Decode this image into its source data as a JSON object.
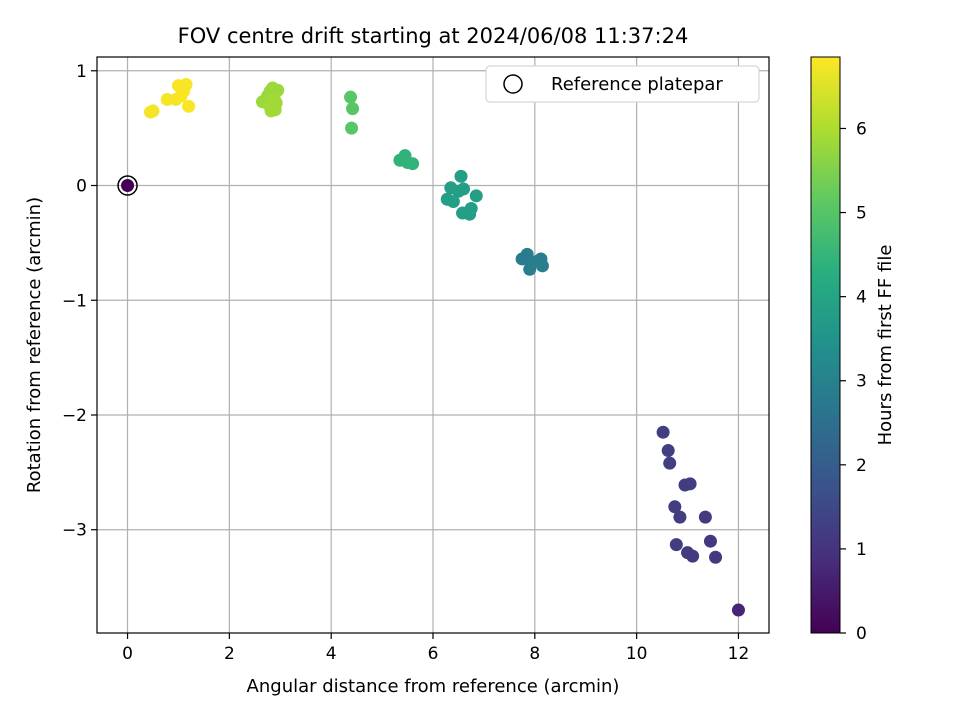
{
  "chart_data": {
    "type": "scatter",
    "title": "FOV centre drift starting at 2024/06/08 11:37:24",
    "xlabel": "Angular distance from reference (arcmin)",
    "ylabel": "Rotation from reference (arcmin)",
    "xlim": [
      -0.6,
      12.6
    ],
    "ylim": [
      -3.9,
      1.12
    ],
    "xticks": [
      0,
      2,
      4,
      6,
      8,
      10,
      12
    ],
    "xtick_labels": [
      "0",
      "2",
      "4",
      "6",
      "8",
      "10",
      "12"
    ],
    "yticks": [
      1,
      0,
      -1,
      -2,
      -3
    ],
    "ytick_labels": [
      "1",
      "0",
      "−1",
      "−2",
      "−3"
    ],
    "grid": true,
    "legend": {
      "position": "top-right",
      "entries": [
        "Reference platepar"
      ]
    },
    "colorbar": {
      "label": "Hours from first FF file",
      "colormap": "viridis",
      "range": [
        0,
        6.85
      ],
      "ticks": [
        0,
        1,
        2,
        3,
        4,
        5,
        6
      ],
      "tick_labels": [
        "0",
        "1",
        "2",
        "3",
        "4",
        "5",
        "6"
      ]
    },
    "reference_point": {
      "x": 0,
      "y": 0
    },
    "points": [
      {
        "x": 0.0,
        "y": 0.0,
        "hours": 0.0
      },
      {
        "x": 12.0,
        "y": -3.7,
        "hours": 0.7
      },
      {
        "x": 11.55,
        "y": -3.24,
        "hours": 1.1
      },
      {
        "x": 11.45,
        "y": -3.1,
        "hours": 1.1
      },
      {
        "x": 11.35,
        "y": -2.89,
        "hours": 1.15
      },
      {
        "x": 11.1,
        "y": -3.23,
        "hours": 1.15
      },
      {
        "x": 11.0,
        "y": -3.2,
        "hours": 1.15
      },
      {
        "x": 10.78,
        "y": -3.13,
        "hours": 1.2
      },
      {
        "x": 10.85,
        "y": -2.89,
        "hours": 1.2
      },
      {
        "x": 10.75,
        "y": -2.8,
        "hours": 1.2
      },
      {
        "x": 11.05,
        "y": -2.6,
        "hours": 1.2
      },
      {
        "x": 10.95,
        "y": -2.61,
        "hours": 1.2
      },
      {
        "x": 10.65,
        "y": -2.42,
        "hours": 1.25
      },
      {
        "x": 10.62,
        "y": -2.31,
        "hours": 1.25
      },
      {
        "x": 10.52,
        "y": -2.15,
        "hours": 1.25
      },
      {
        "x": 7.75,
        "y": -0.64,
        "hours": 2.85
      },
      {
        "x": 7.85,
        "y": -0.6,
        "hours": 2.85
      },
      {
        "x": 7.92,
        "y": -0.67,
        "hours": 2.85
      },
      {
        "x": 7.9,
        "y": -0.73,
        "hours": 2.9
      },
      {
        "x": 8.05,
        "y": -0.66,
        "hours": 2.9
      },
      {
        "x": 8.12,
        "y": -0.64,
        "hours": 2.9
      },
      {
        "x": 8.15,
        "y": -0.7,
        "hours": 2.9
      },
      {
        "x": 6.55,
        "y": 0.08,
        "hours": 3.8
      },
      {
        "x": 6.6,
        "y": -0.03,
        "hours": 3.8
      },
      {
        "x": 6.5,
        "y": -0.05,
        "hours": 3.8
      },
      {
        "x": 6.35,
        "y": -0.02,
        "hours": 3.85
      },
      {
        "x": 6.28,
        "y": -0.12,
        "hours": 3.85
      },
      {
        "x": 6.4,
        "y": -0.14,
        "hours": 3.85
      },
      {
        "x": 6.58,
        "y": -0.24,
        "hours": 3.85
      },
      {
        "x": 6.72,
        "y": -0.25,
        "hours": 3.85
      },
      {
        "x": 6.75,
        "y": -0.2,
        "hours": 3.85
      },
      {
        "x": 6.85,
        "y": -0.09,
        "hours": 3.85
      },
      {
        "x": 5.35,
        "y": 0.22,
        "hours": 4.4
      },
      {
        "x": 5.45,
        "y": 0.26,
        "hours": 4.4
      },
      {
        "x": 5.5,
        "y": 0.2,
        "hours": 4.45
      },
      {
        "x": 5.6,
        "y": 0.19,
        "hours": 4.45
      },
      {
        "x": 4.38,
        "y": 0.77,
        "hours": 5.05
      },
      {
        "x": 4.42,
        "y": 0.67,
        "hours": 5.05
      },
      {
        "x": 4.4,
        "y": 0.5,
        "hours": 5.05
      },
      {
        "x": 2.65,
        "y": 0.73,
        "hours": 5.8
      },
      {
        "x": 2.75,
        "y": 0.78,
        "hours": 5.8
      },
      {
        "x": 2.8,
        "y": 0.82,
        "hours": 5.8
      },
      {
        "x": 2.85,
        "y": 0.85,
        "hours": 5.8
      },
      {
        "x": 2.95,
        "y": 0.83,
        "hours": 5.8
      },
      {
        "x": 2.92,
        "y": 0.72,
        "hours": 5.85
      },
      {
        "x": 2.82,
        "y": 0.65,
        "hours": 5.85
      },
      {
        "x": 2.9,
        "y": 0.66,
        "hours": 5.85
      },
      {
        "x": 2.78,
        "y": 0.7,
        "hours": 5.85
      },
      {
        "x": 2.88,
        "y": 0.76,
        "hours": 5.85
      },
      {
        "x": 0.45,
        "y": 0.64,
        "hours": 6.75
      },
      {
        "x": 0.5,
        "y": 0.65,
        "hours": 6.75
      },
      {
        "x": 0.78,
        "y": 0.75,
        "hours": 6.75
      },
      {
        "x": 0.95,
        "y": 0.75,
        "hours": 6.75
      },
      {
        "x": 1.0,
        "y": 0.87,
        "hours": 6.8
      },
      {
        "x": 1.1,
        "y": 0.82,
        "hours": 6.8
      },
      {
        "x": 1.15,
        "y": 0.88,
        "hours": 6.8
      },
      {
        "x": 1.05,
        "y": 0.78,
        "hours": 6.8
      },
      {
        "x": 1.2,
        "y": 0.69,
        "hours": 6.8
      }
    ]
  }
}
